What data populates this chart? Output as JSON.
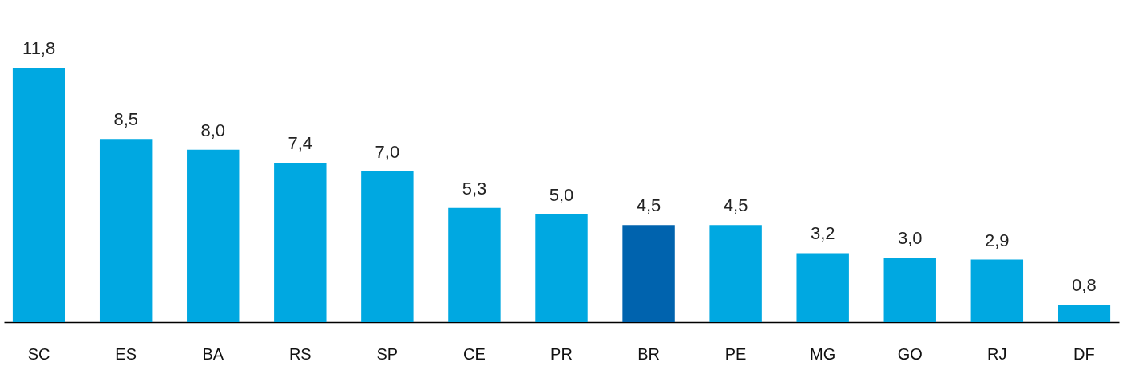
{
  "chart_data": {
    "type": "bar",
    "categories": [
      "SC",
      "ES",
      "BA",
      "RS",
      "SP",
      "CE",
      "PR",
      "BR",
      "PE",
      "MG",
      "GO",
      "RJ",
      "DF"
    ],
    "values": [
      11.8,
      8.5,
      8.0,
      7.4,
      7.0,
      5.3,
      5.0,
      4.5,
      4.5,
      3.2,
      3.0,
      2.9,
      0.8
    ],
    "colors": [
      "#00a8e1",
      "#00a8e1",
      "#00a8e1",
      "#00a8e1",
      "#00a8e1",
      "#00a8e1",
      "#00a8e1",
      "#0063ae",
      "#00a8e1",
      "#00a8e1",
      "#00a8e1",
      "#00a8e1",
      "#00a8e1"
    ],
    "value_labels": [
      "11,8",
      "8,5",
      "8,0",
      "7,4",
      "7,0",
      "5,3",
      "5,0",
      "4,5",
      "4,5",
      "3,2",
      "3,0",
      "2,9",
      "0,8"
    ],
    "tick_labels": "x"
  }
}
